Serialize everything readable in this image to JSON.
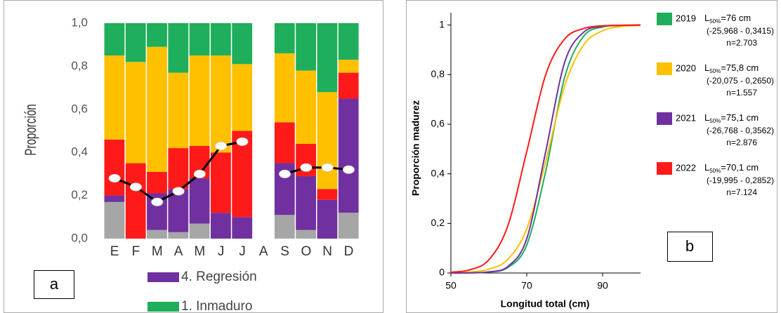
{
  "chart_data": [
    {
      "type": "bar",
      "stacked": true,
      "label": "a",
      "ylabel": "Proporción",
      "categories": [
        "E",
        "F",
        "M",
        "A",
        "M",
        "J",
        "J",
        "A",
        "S",
        "O",
        "N",
        "D"
      ],
      "ylim": [
        0,
        1
      ],
      "yticks": [
        {
          "value": 0,
          "label": "0,0"
        },
        {
          "value": 0.2,
          "label": "0,2"
        },
        {
          "value": 0.4,
          "label": "0,4"
        },
        {
          "value": 0.6,
          "label": "0,6"
        },
        {
          "value": 0.8,
          "label": "0,8"
        },
        {
          "value": 1,
          "label": "1,0"
        }
      ],
      "series": [
        {
          "color": "#a6a6a6",
          "values": [
            0.17,
            0,
            0.04,
            0.03,
            0.07,
            0,
            0,
            null,
            0.11,
            0.04,
            0,
            0.12
          ]
        },
        {
          "name": "4. Regresión",
          "color": "#7030a0",
          "values": [
            0.03,
            0,
            0.17,
            0.2,
            0.21,
            0.12,
            0.1,
            null,
            0.24,
            0.25,
            0.18,
            0.53
          ]
        },
        {
          "color": "#ff1a1a",
          "values": [
            0.26,
            0.35,
            0.1,
            0.19,
            0.15,
            0.28,
            0.4,
            null,
            0.19,
            0.15,
            0.05,
            0.12
          ]
        },
        {
          "color": "#ffc000",
          "values": [
            0.39,
            0.47,
            0.58,
            0.35,
            0.42,
            0.45,
            0.31,
            null,
            0.32,
            0.34,
            0.45,
            0.06
          ]
        },
        {
          "name": "1. Inmaduro",
          "color": "#1fae5b",
          "values": [
            0.15,
            0.18,
            0.11,
            0.23,
            0.15,
            0.15,
            0.19,
            null,
            0.14,
            0.22,
            0.32,
            0.17
          ]
        }
      ],
      "line_series": {
        "color": "#000000",
        "values": [
          0.28,
          0.24,
          0.17,
          0.22,
          0.3,
          0.43,
          0.45,
          null,
          0.3,
          0.33,
          0.33,
          0.32
        ]
      }
    },
    {
      "type": "line",
      "label": "b",
      "xlabel": "Longitud total (cm)",
      "ylabel": "Proporción madurez",
      "x": [
        50,
        55,
        60,
        65,
        70,
        75,
        80,
        85,
        90,
        95,
        100
      ],
      "xlim": [
        50,
        100
      ],
      "xticks": [
        50,
        70,
        90
      ],
      "ylim": [
        0,
        1.05
      ],
      "yticks": [
        0,
        {
          "value": 0.2,
          "label": "0,2"
        },
        {
          "value": 0.4,
          "label": "0,4"
        },
        {
          "value": 0.6,
          "label": "0,6"
        },
        {
          "value": 0.8,
          "label": "0,8"
        },
        1
      ],
      "series": [
        {
          "name": "2019",
          "color": "#1fae5b",
          "l50": [
            "L",
            "50%",
            "=76 cm"
          ],
          "params": "(-25,968 - 0,3415)",
          "n": "n=2.703",
          "values": [
            0.0001,
            0.0008,
            0.004,
            0.022,
            0.113,
            0.41,
            0.79,
            0.955,
            0.992,
            0.998,
            1
          ]
        },
        {
          "name": "2020",
          "color": "#ffc000",
          "l50": [
            "L",
            "50%",
            "=75,8 cm"
          ],
          "params": "(-20,075 - 0,2650)",
          "n": "n=1.557",
          "values": [
            0.001,
            0.004,
            0.015,
            0.055,
            0.178,
            0.45,
            0.755,
            0.92,
            0.977,
            0.994,
            0.998
          ]
        },
        {
          "name": "2021",
          "color": "#7030a0",
          "l50": [
            "L",
            "50%",
            "=75,1 cm"
          ],
          "params": "(-26,768 - 0,3562)",
          "n": "n=2.876",
          "values": [
            0.0001,
            0.0008,
            0.0045,
            0.026,
            0.138,
            0.49,
            0.85,
            0.971,
            0.995,
            0.999,
            1
          ]
        },
        {
          "name": "2022",
          "color": "#ff1a1a",
          "l50": [
            "L",
            "50%",
            "=70,1 cm"
          ],
          "params": "(-19,995 - 0,2852)",
          "n": "n=7.124",
          "values": [
            0.003,
            0.013,
            0.053,
            0.19,
            0.49,
            0.8,
            0.944,
            0.986,
            0.997,
            0.999,
            1
          ]
        }
      ]
    }
  ]
}
